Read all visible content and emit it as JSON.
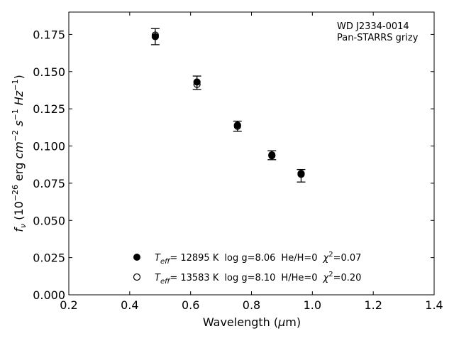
{
  "chart_data": {
    "type": "scatter",
    "xlabel": "Wavelength (μm)",
    "ylabel": "f_ν (10^-26 erg cm^-2 s^-1 Hz^-1)",
    "xlim": [
      0.2,
      1.4
    ],
    "ylim": [
      0.0,
      0.19
    ],
    "x_ticks": [
      "0.2",
      "0.4",
      "0.6",
      "0.8",
      "1.0",
      "1.2",
      "1.4"
    ],
    "y_ticks": [
      "0.000",
      "0.025",
      "0.050",
      "0.075",
      "0.100",
      "0.125",
      "0.150",
      "0.175"
    ],
    "grid": false,
    "annotation": {
      "line1": "WD J2334-0014",
      "line2": "Pan-STARRS grizy"
    },
    "observed": {
      "x": [
        0.484,
        0.621,
        0.754,
        0.867,
        0.963
      ],
      "y": [
        0.1735,
        0.1425,
        0.1133,
        0.0938,
        0.08
      ],
      "yerr": [
        0.0054,
        0.0045,
        0.0034,
        0.003,
        0.0042
      ]
    },
    "series": [
      {
        "marker": "filled",
        "legend": {
          "teff": "= 12895 K",
          "logg": "log g=8.06",
          "comp": "He/H=0",
          "chi": "=0.07"
        },
        "x": [
          0.484,
          0.621,
          0.754,
          0.867,
          0.963
        ],
        "y": [
          0.1735,
          0.143,
          0.114,
          0.094,
          0.081
        ]
      },
      {
        "marker": "open",
        "legend": {
          "teff": "= 13583 K",
          "logg": "log g=8.10",
          "comp": "H/He=0",
          "chi": "=0.20"
        },
        "x": [
          0.484,
          0.621,
          0.754,
          0.867,
          0.963
        ],
        "y": [
          0.1745,
          0.1415,
          0.1133,
          0.0935,
          0.0815
        ]
      }
    ]
  }
}
